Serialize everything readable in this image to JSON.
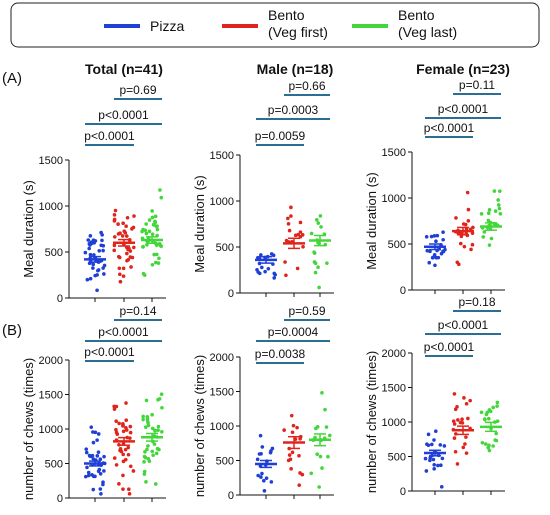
{
  "legend": {
    "items": [
      {
        "label_lines": [
          "Pizza"
        ],
        "color": "#1f3fd6"
      },
      {
        "label_lines": [
          "Bento",
          "(Veg first)"
        ],
        "color": "#e0241b"
      },
      {
        "label_lines": [
          "Bento",
          "(Veg last)"
        ],
        "color": "#43d63a"
      }
    ]
  },
  "row_labels": [
    "(A)",
    "(B)"
  ],
  "colors": {
    "pizza": "#1f3fd6",
    "veg_first": "#e0241b",
    "veg_last": "#43d63a",
    "bracket": "#2a6f93"
  },
  "chart_data": [
    {
      "type": "scatter",
      "title": "Total (n=41)",
      "ylabel": "Meal duration (s)",
      "ylim": [
        0,
        1500
      ],
      "yticks": [
        0,
        500,
        1000,
        1500
      ],
      "groups": [
        {
          "name": "Pizza",
          "mean": 420,
          "sem": 30,
          "n": 41
        },
        {
          "name": "Bento (Veg first)",
          "mean": 600,
          "sem": 35,
          "n": 41
        },
        {
          "name": "Bento (Veg last)",
          "mean": 630,
          "sem": 35,
          "n": 41
        }
      ],
      "comparisons": [
        {
          "from": 0,
          "to": 1,
          "label": "p<0.0001"
        },
        {
          "from": 0,
          "to": 2,
          "label": "p<0.0001"
        },
        {
          "from": 1,
          "to": 2,
          "label": "p=0.69"
        }
      ]
    },
    {
      "type": "scatter",
      "title": "Male (n=18)",
      "ylabel": "Meal duration (s)",
      "ylim": [
        0,
        1500
      ],
      "yticks": [
        0,
        500,
        1000,
        1500
      ],
      "groups": [
        {
          "name": "Pizza",
          "mean": 360,
          "sem": 35,
          "n": 18
        },
        {
          "name": "Bento (Veg first)",
          "mean": 540,
          "sem": 55,
          "n": 18
        },
        {
          "name": "Bento (Veg last)",
          "mean": 570,
          "sem": 55,
          "n": 18
        }
      ],
      "comparisons": [
        {
          "from": 0,
          "to": 1,
          "label": "p=0.0059"
        },
        {
          "from": 0,
          "to": 2,
          "label": "p=0.0003"
        },
        {
          "from": 1,
          "to": 2,
          "label": "p=0.66"
        }
      ]
    },
    {
      "type": "scatter",
      "title": "Female (n=23)",
      "ylabel": "Meal duration (s)",
      "ylim": [
        0,
        1500
      ],
      "yticks": [
        0,
        500,
        1000,
        1500
      ],
      "groups": [
        {
          "name": "Pizza",
          "mean": 470,
          "sem": 30,
          "n": 23
        },
        {
          "name": "Bento (Veg first)",
          "mean": 640,
          "sem": 40,
          "n": 23
        },
        {
          "name": "Bento (Veg last)",
          "mean": 690,
          "sem": 40,
          "n": 23
        }
      ],
      "comparisons": [
        {
          "from": 0,
          "to": 1,
          "label": "p<0.0001"
        },
        {
          "from": 0,
          "to": 2,
          "label": "p<0.0001"
        },
        {
          "from": 1,
          "to": 2,
          "label": "p=0.11"
        }
      ]
    },
    {
      "type": "scatter",
      "title": "",
      "ylabel": "number of chews (times)",
      "ylim": [
        0,
        2000
      ],
      "yticks": [
        0,
        500,
        1000,
        1500,
        2000
      ],
      "groups": [
        {
          "name": "Pizza",
          "mean": 500,
          "sem": 35,
          "n": 41
        },
        {
          "name": "Bento (Veg first)",
          "mean": 820,
          "sem": 55,
          "n": 41
        },
        {
          "name": "Bento (Veg last)",
          "mean": 880,
          "sem": 55,
          "n": 41
        }
      ],
      "comparisons": [
        {
          "from": 0,
          "to": 1,
          "label": "p<0.0001"
        },
        {
          "from": 0,
          "to": 2,
          "label": "p<0.0001"
        },
        {
          "from": 1,
          "to": 2,
          "label": "p=0.14"
        }
      ]
    },
    {
      "type": "scatter",
      "title": "",
      "ylabel": "number of chews (times)",
      "ylim": [
        0,
        2000
      ],
      "yticks": [
        0,
        500,
        1000,
        1500,
        2000
      ],
      "groups": [
        {
          "name": "Pizza",
          "mean": 450,
          "sem": 50,
          "n": 18
        },
        {
          "name": "Bento (Veg first)",
          "mean": 760,
          "sem": 85,
          "n": 18
        },
        {
          "name": "Bento (Veg last)",
          "mean": 800,
          "sem": 85,
          "n": 18
        }
      ],
      "comparisons": [
        {
          "from": 0,
          "to": 1,
          "label": "p=0.0038"
        },
        {
          "from": 0,
          "to": 2,
          "label": "p=0.0004"
        },
        {
          "from": 1,
          "to": 2,
          "label": "p=0.59"
        }
      ]
    },
    {
      "type": "scatter",
      "title": "",
      "ylabel": "number of chews (times)",
      "ylim": [
        0,
        2000
      ],
      "yticks": [
        0,
        500,
        1000,
        1500,
        2000
      ],
      "groups": [
        {
          "name": "Pizza",
          "mean": 550,
          "sem": 40,
          "n": 23
        },
        {
          "name": "Bento (Veg first)",
          "mean": 880,
          "sem": 60,
          "n": 23
        },
        {
          "name": "Bento (Veg last)",
          "mean": 930,
          "sem": 65,
          "n": 23
        }
      ],
      "comparisons": [
        {
          "from": 0,
          "to": 1,
          "label": "p<0.0001"
        },
        {
          "from": 0,
          "to": 2,
          "label": "p<0.0001"
        },
        {
          "from": 1,
          "to": 2,
          "label": "p=0.18"
        }
      ]
    }
  ]
}
